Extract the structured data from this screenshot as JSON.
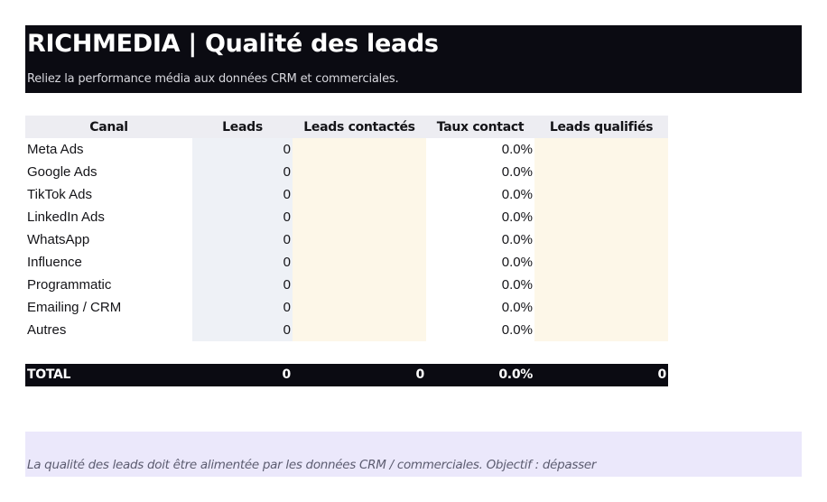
{
  "banner": {
    "title": "RICHMEDIA | Qualité des leads",
    "subtitle": "Reliez la performance média aux données CRM et commerciales."
  },
  "table": {
    "headers": [
      "Canal",
      "Leads",
      "Leads contactés",
      "Taux contact",
      "Leads qualifiés"
    ],
    "rows": [
      {
        "canal": "Meta Ads",
        "leads": "0",
        "contactes": "",
        "taux": "0.0%",
        "qualifies": ""
      },
      {
        "canal": "Google Ads",
        "leads": "0",
        "contactes": "",
        "taux": "0.0%",
        "qualifies": ""
      },
      {
        "canal": "TikTok Ads",
        "leads": "0",
        "contactes": "",
        "taux": "0.0%",
        "qualifies": ""
      },
      {
        "canal": "LinkedIn Ads",
        "leads": "0",
        "contactes": "",
        "taux": "0.0%",
        "qualifies": ""
      },
      {
        "canal": "WhatsApp",
        "leads": "0",
        "contactes": "",
        "taux": "0.0%",
        "qualifies": ""
      },
      {
        "canal": "Influence",
        "leads": "0",
        "contactes": "",
        "taux": "0.0%",
        "qualifies": ""
      },
      {
        "canal": "Programmatic",
        "leads": "0",
        "contactes": "",
        "taux": "0.0%",
        "qualifies": ""
      },
      {
        "canal": "Emailing / CRM",
        "leads": "0",
        "contactes": "",
        "taux": "0.0%",
        "qualifies": ""
      },
      {
        "canal": "Autres",
        "leads": "0",
        "contactes": "",
        "taux": "0.0%",
        "qualifies": ""
      }
    ],
    "total": {
      "label": "TOTAL",
      "leads": "0",
      "contactes": "0",
      "taux": "0.0%",
      "qualifies": "0"
    }
  },
  "note": {
    "text": "La qualité des leads doit être alimentée par les données CRM / commerciales. Objectif : dépasser"
  },
  "colors": {
    "banner_bg": "#0b0b12",
    "header_bg": "#ededf2",
    "leads_col_bg": "#eef1f6",
    "input_col_bg": "#fdf7e8",
    "note_bg": "#ebe8fb"
  }
}
